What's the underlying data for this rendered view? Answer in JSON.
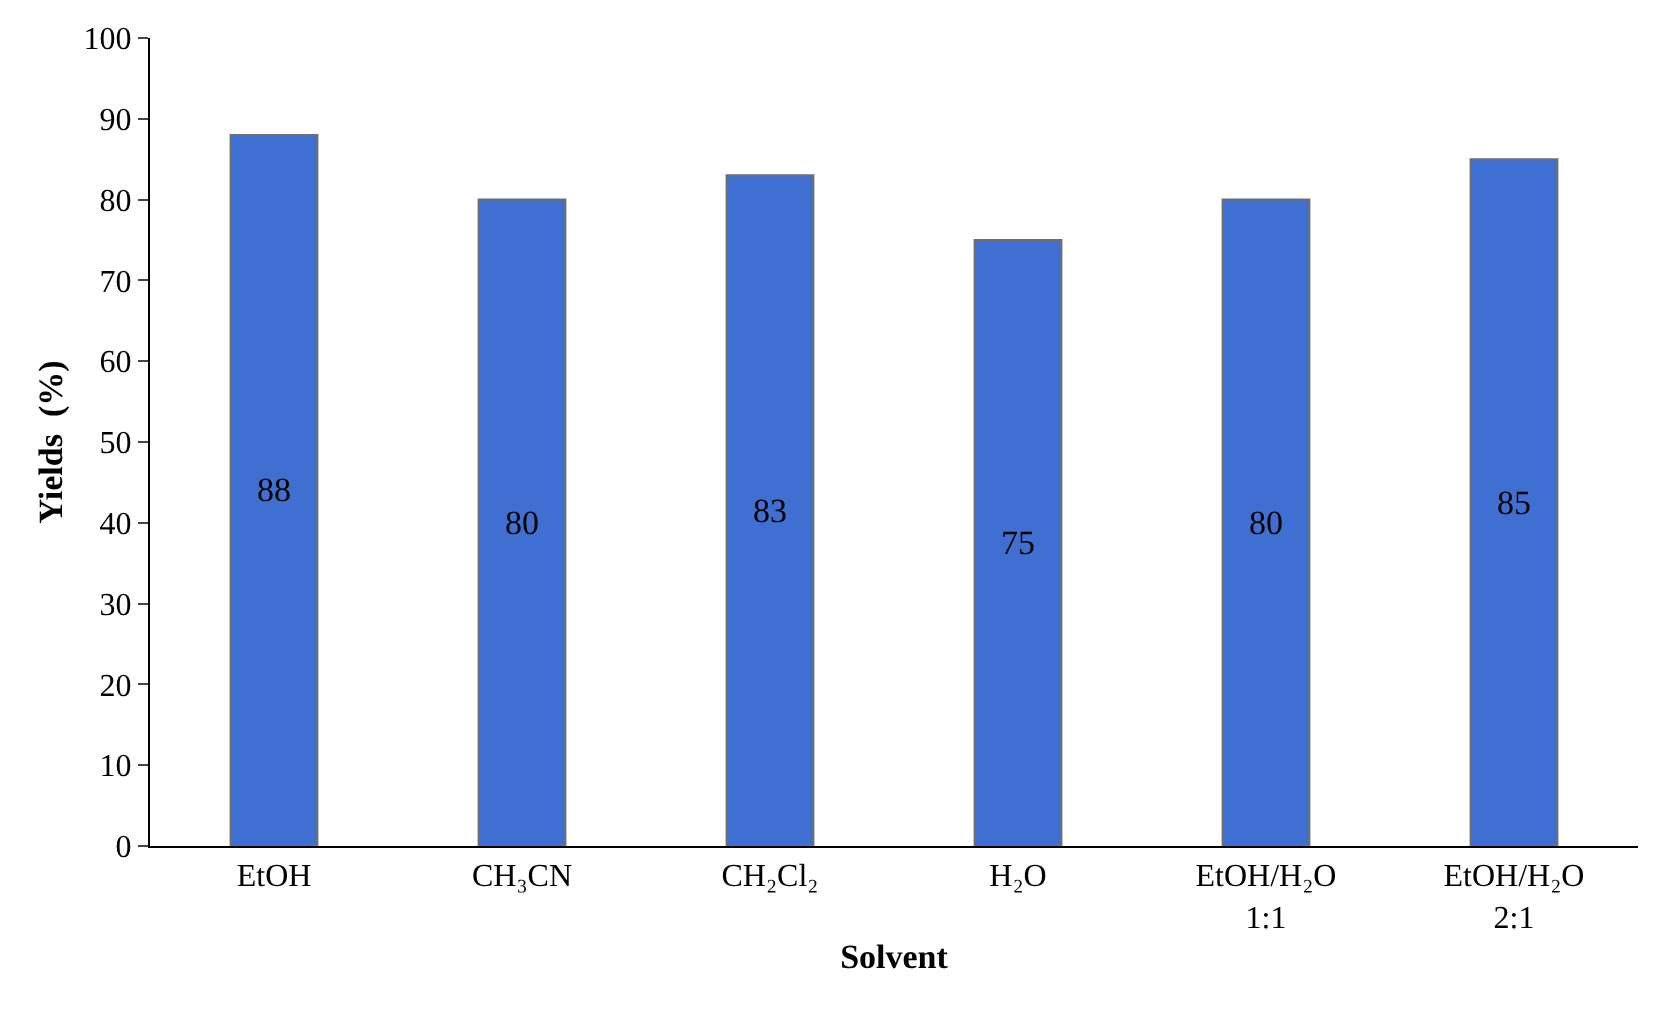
{
  "chart_data": {
    "type": "bar",
    "xlabel": "Solvent",
    "ylabel": "Yields  (%)",
    "categories": [
      "EtOH",
      "CH₃CN",
      "CH₂Cl₂",
      "H₂O",
      "EtOH/H₂O\n1:1",
      "EtOH/H₂O\n2:1"
    ],
    "values": [
      88,
      80,
      83,
      75,
      80,
      85
    ],
    "color": "#3f6fd0",
    "ylim": [
      0,
      100
    ],
    "yticks": [
      0,
      10,
      20,
      30,
      40,
      50,
      60,
      70,
      80,
      90,
      100
    ],
    "grid": false,
    "data_labels": true
  }
}
